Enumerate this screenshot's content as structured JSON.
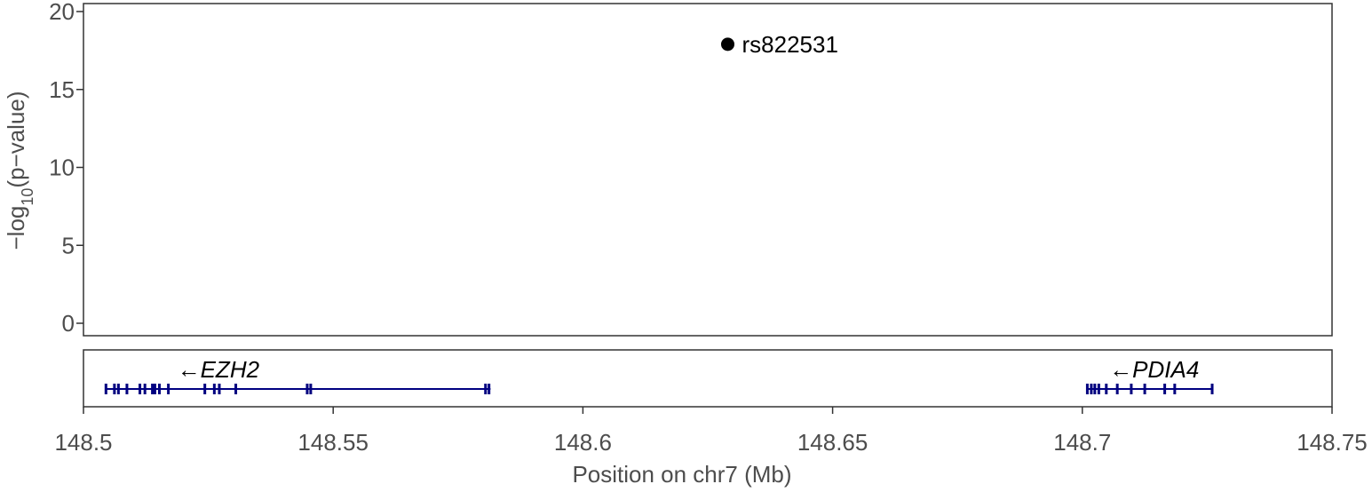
{
  "chart_data": {
    "type": "scatter",
    "xlabel": "Position on chr7 (Mb)",
    "ylabel_main": "−log",
    "ylabel_sub": "10",
    "ylabel_tail": "(p−value)",
    "xlim": [
      148.5,
      148.75
    ],
    "ylim": [
      0,
      20
    ],
    "x_ticks": [
      148.5,
      148.55,
      148.6,
      148.65,
      148.7,
      148.75
    ],
    "x_tick_labels": [
      "148.5",
      "148.55",
      "148.6",
      "148.65",
      "148.7",
      "148.75"
    ],
    "y_ticks": [
      0,
      5,
      10,
      15,
      20
    ],
    "y_tick_labels": [
      "0",
      "5",
      "10",
      "15",
      "20"
    ],
    "points": [
      {
        "label": "rs822531",
        "x": 148.629,
        "y": 17.9
      }
    ],
    "genes": [
      {
        "name": "EZH2",
        "strand": "-",
        "arrow": "←",
        "start": 148.5045,
        "end": 148.5815,
        "exons": [
          148.5045,
          148.5062,
          148.507,
          148.5087,
          148.5113,
          148.5123,
          148.5138,
          148.5143,
          148.5152,
          148.517,
          148.5243,
          148.5262,
          148.5272,
          148.5305,
          148.5448,
          148.5455,
          148.5805,
          148.5812
        ]
      },
      {
        "name": "PDIA4",
        "strand": "-",
        "arrow": "←",
        "start": 148.701,
        "end": 148.726,
        "exons": [
          148.701,
          148.7018,
          148.7025,
          148.7033,
          148.7048,
          148.707,
          148.7098,
          148.7125,
          148.7165,
          148.7185,
          148.726
        ]
      }
    ],
    "colors": {
      "point": "#000000",
      "gene": "#000080",
      "frame": "#333333",
      "text": "#4d4d4d"
    }
  }
}
